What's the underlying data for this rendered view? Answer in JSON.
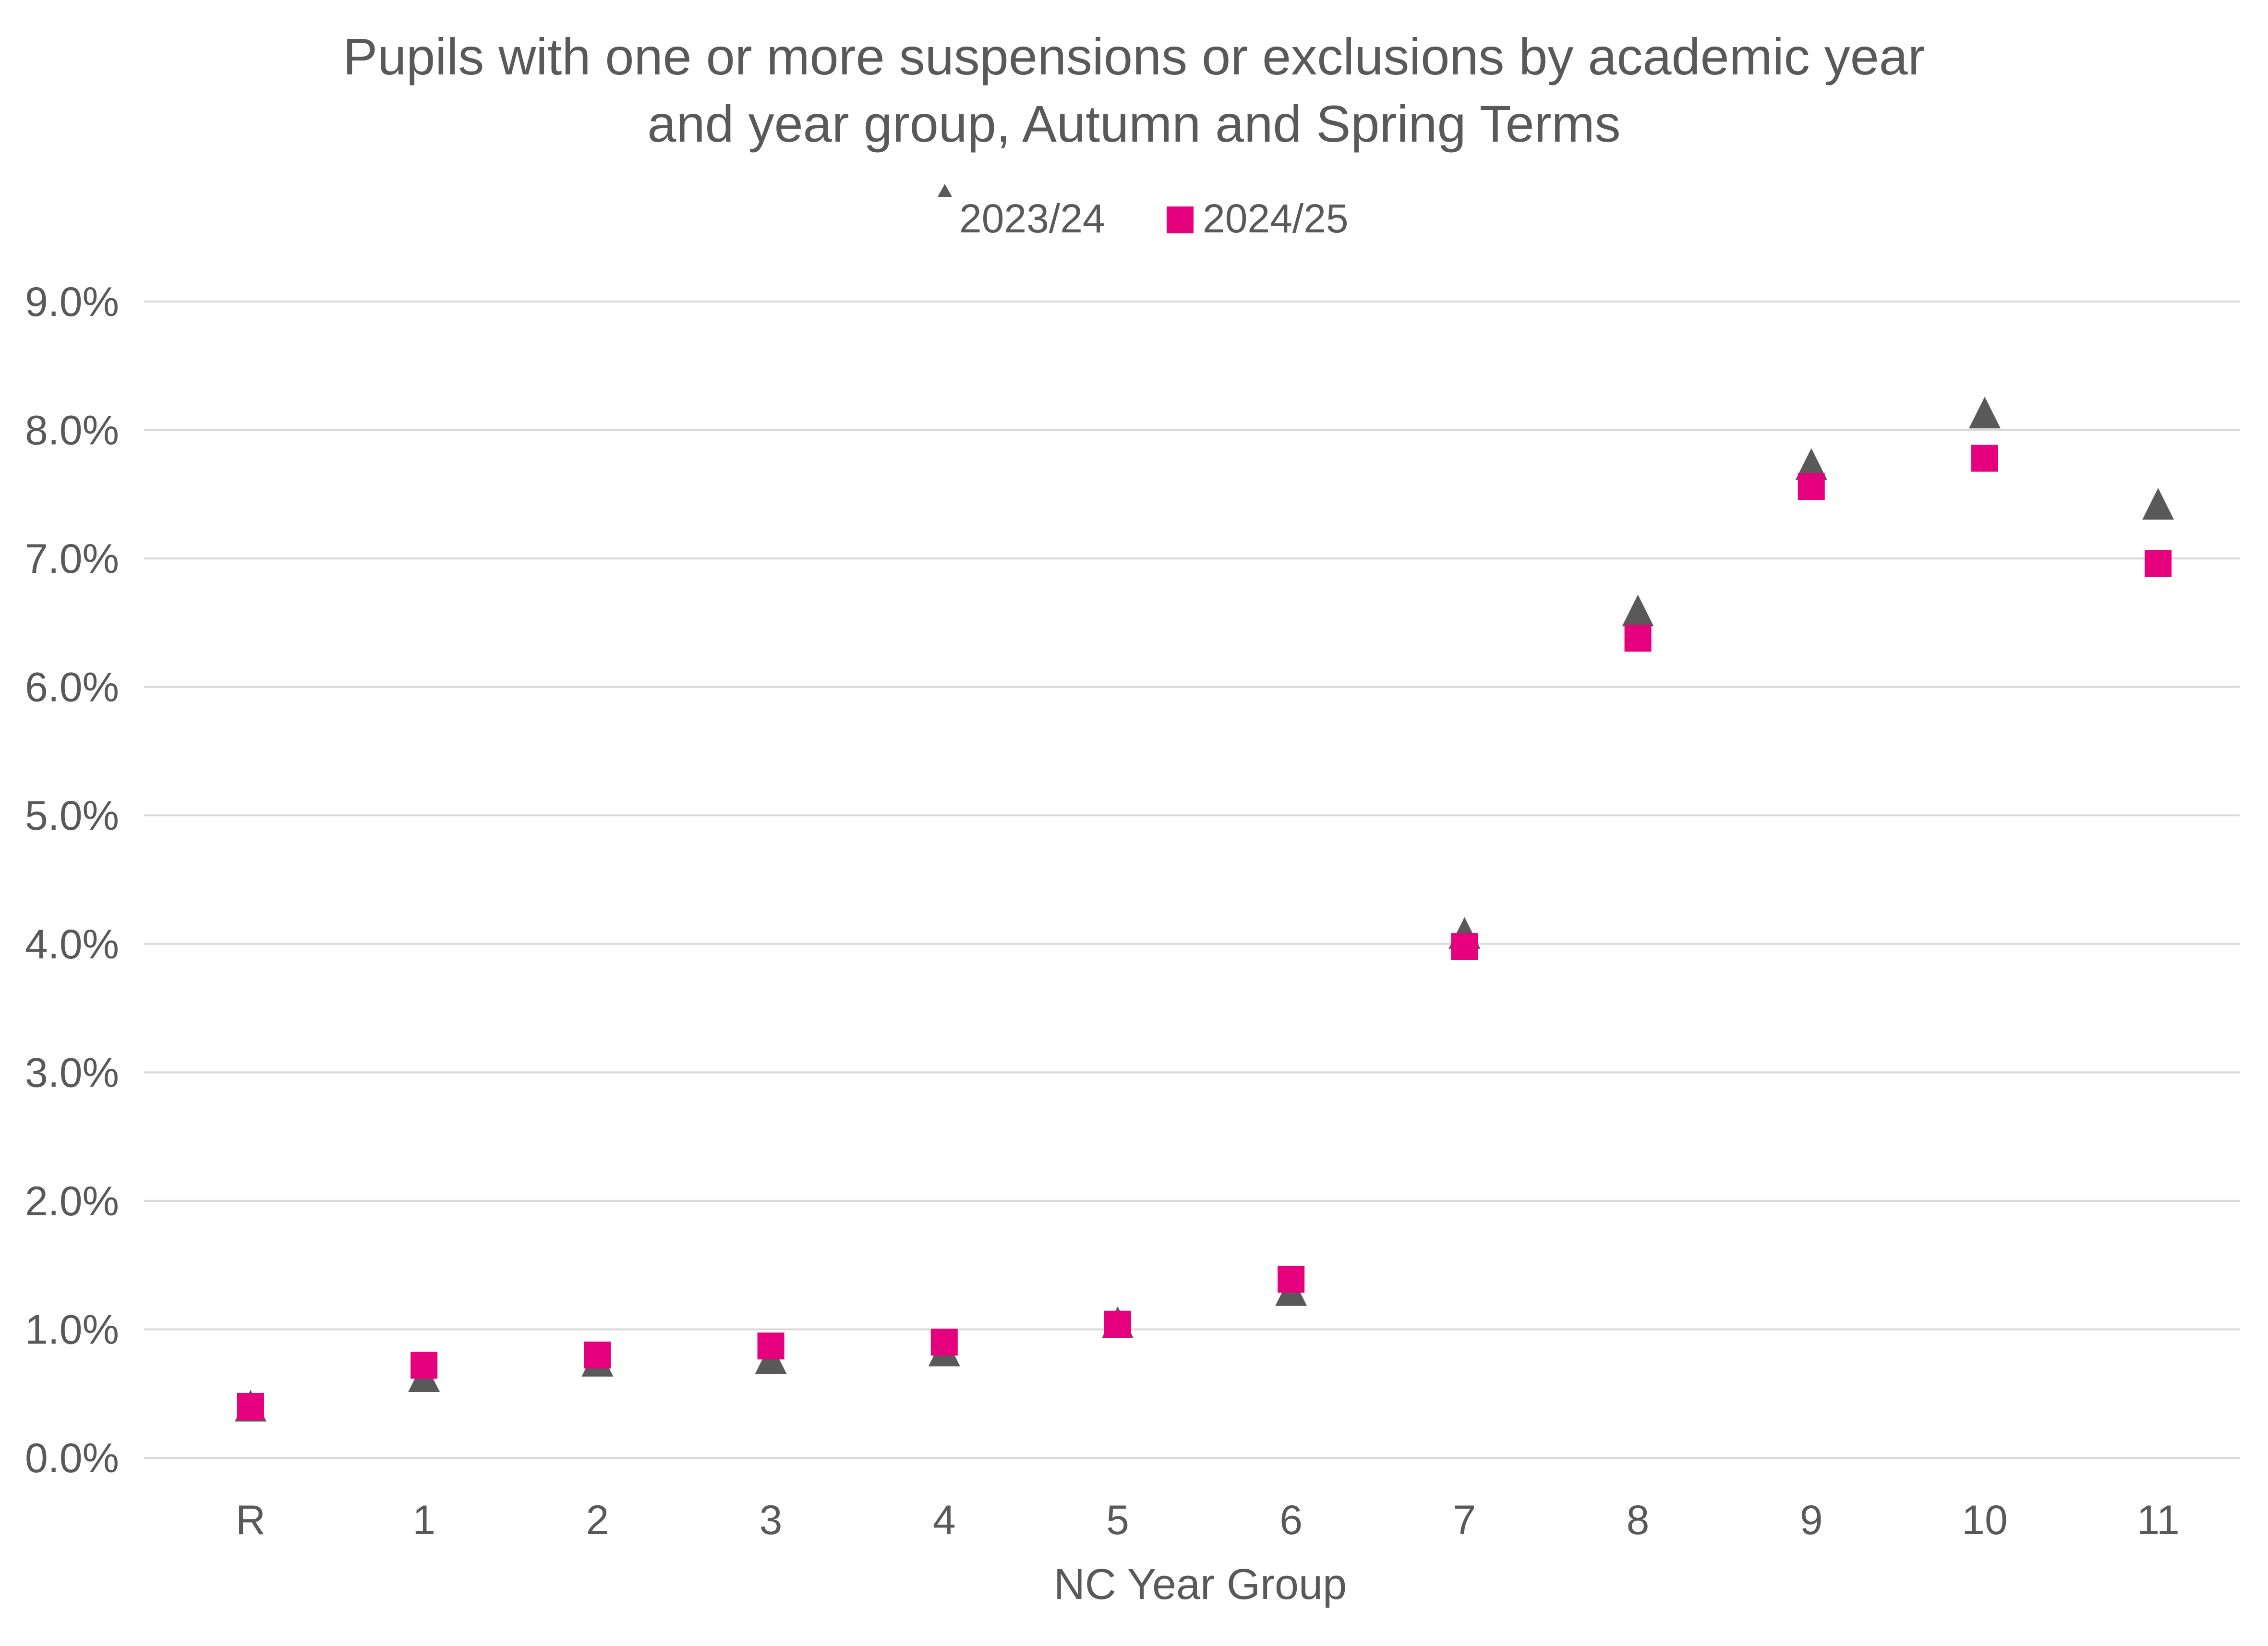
{
  "chart_data": {
    "type": "scatter",
    "title": "Pupils with one or more suspensions or exclusions by academic year and year group, Autumn and Spring Terms",
    "title_lines": [
      "Pupils with one or more suspensions or exclusions by academic year",
      "and year group, Autumn and Spring Terms"
    ],
    "xlabel": "NC Year Group",
    "ylabel": "",
    "categories": [
      "R",
      "1",
      "2",
      "3",
      "4",
      "5",
      "6",
      "7",
      "8",
      "9",
      "10",
      "11"
    ],
    "ylim": [
      0,
      0.09
    ],
    "ytick_values": [
      0,
      0.01,
      0.02,
      0.03,
      0.04,
      0.05,
      0.06,
      0.07,
      0.08,
      0.09
    ],
    "ytick_labels": [
      "0.0%",
      "1.0%",
      "2.0%",
      "3.0%",
      "4.0%",
      "5.0%",
      "6.0%",
      "7.0%",
      "8.0%",
      "9.0%"
    ],
    "grid": true,
    "legend_position": "top-center",
    "series": [
      {
        "name": "2023/24",
        "marker": "triangle",
        "color": "#595959",
        "values": [
          0.0035,
          0.0058,
          0.007,
          0.0072,
          0.0078,
          0.01,
          0.0125,
          0.0403,
          0.0654,
          0.0768,
          0.0808,
          0.0737
        ]
      },
      {
        "name": "2024/25",
        "marker": "square",
        "color": "#e6007e",
        "values": [
          0.004,
          0.0072,
          0.008,
          0.0087,
          0.009,
          0.0104,
          0.0139,
          0.0398,
          0.0638,
          0.0756,
          0.0778,
          0.0696
        ]
      }
    ]
  }
}
